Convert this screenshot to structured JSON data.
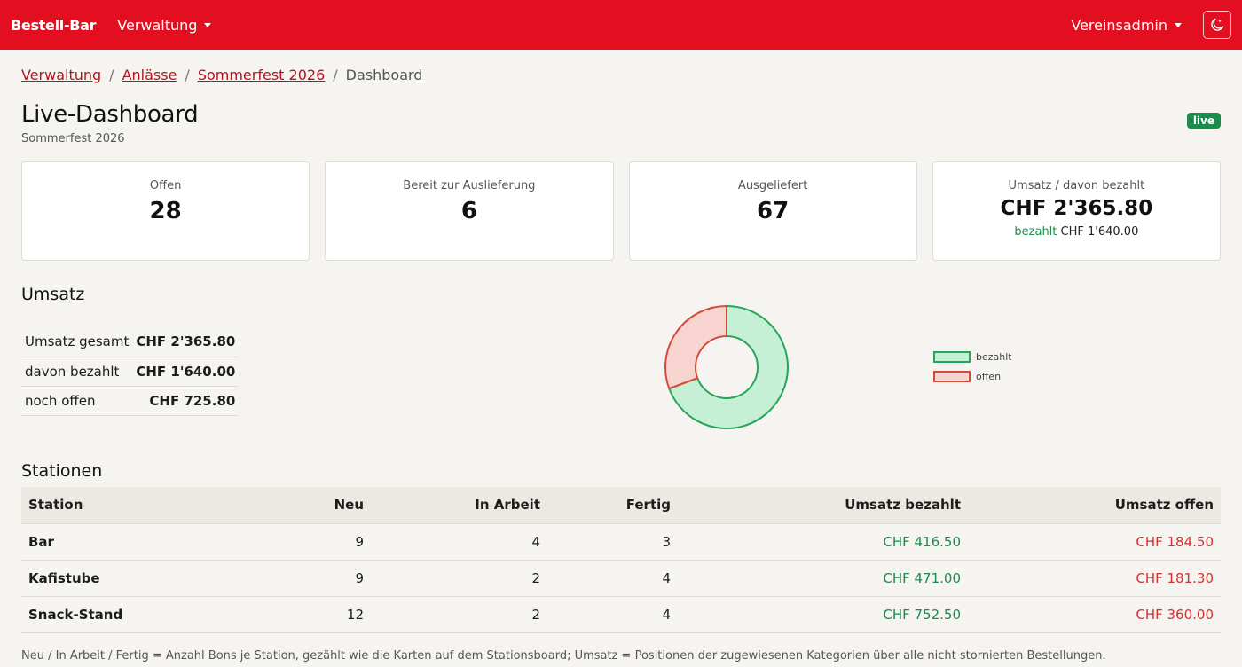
{
  "navbar": {
    "brand": "Bestell-Bar",
    "menu_label": "Verwaltung",
    "user_label": "Vereinsadmin",
    "theme_icon": "moon-stars-icon"
  },
  "breadcrumb": {
    "items": [
      "Verwaltung",
      "Anlässe",
      "Sommerfest 2026"
    ],
    "current": "Dashboard"
  },
  "page": {
    "title": "Live-Dashboard",
    "subtitle": "Sommerfest 2026",
    "badge": "live"
  },
  "cards": [
    {
      "label": "Offen",
      "value": "28"
    },
    {
      "label": "Bereit zur Auslieferung",
      "value": "6"
    },
    {
      "label": "Ausgeliefert",
      "value": "67"
    },
    {
      "label": "Umsatz / davon bezahlt",
      "value": "CHF 2'365.80",
      "sub_prefix": "bezahlt",
      "sub_value": "CHF 1'640.00"
    }
  ],
  "umsatz": {
    "heading": "Umsatz",
    "rows": [
      {
        "label": "Umsatz gesamt",
        "value": "CHF 2'365.80"
      },
      {
        "label": "davon bezahlt",
        "value": "CHF 1'640.00"
      },
      {
        "label": "noch offen",
        "value": "CHF 725.80"
      }
    ]
  },
  "chart_data": {
    "type": "pie",
    "categories": [
      "bezahlt",
      "offen"
    ],
    "values": [
      1640.0,
      725.8
    ],
    "colors": {
      "bezahlt_fill": "#c6f0d6",
      "bezahlt_stroke": "#27a559",
      "offen_fill": "#f7d4cf",
      "offen_stroke": "#d44b3a"
    },
    "legend": "right"
  },
  "stations": {
    "heading": "Stationen",
    "columns": [
      "Station",
      "Neu",
      "In Arbeit",
      "Fertig",
      "Umsatz bezahlt",
      "Umsatz offen"
    ],
    "rows": [
      [
        "Bar",
        "9",
        "4",
        "3",
        "CHF 416.50",
        "CHF 184.50"
      ],
      [
        "Kafistube",
        "9",
        "2",
        "4",
        "CHF 471.00",
        "CHF 181.30"
      ],
      [
        "Snack-Stand",
        "12",
        "2",
        "4",
        "CHF 752.50",
        "CHF 360.00"
      ]
    ],
    "footnote": "Neu / In Arbeit / Fertig = Anzahl Bons je Station, gezählt wie die Karten auf dem Stationsboard; Umsatz = Positionen der zugewiesenen Kategorien über alle nicht stornierten Bestellungen."
  },
  "colors": {
    "navbar": "#e30e20",
    "success": "#1d8a4e",
    "danger": "#d13232",
    "link": "#b5121b"
  }
}
